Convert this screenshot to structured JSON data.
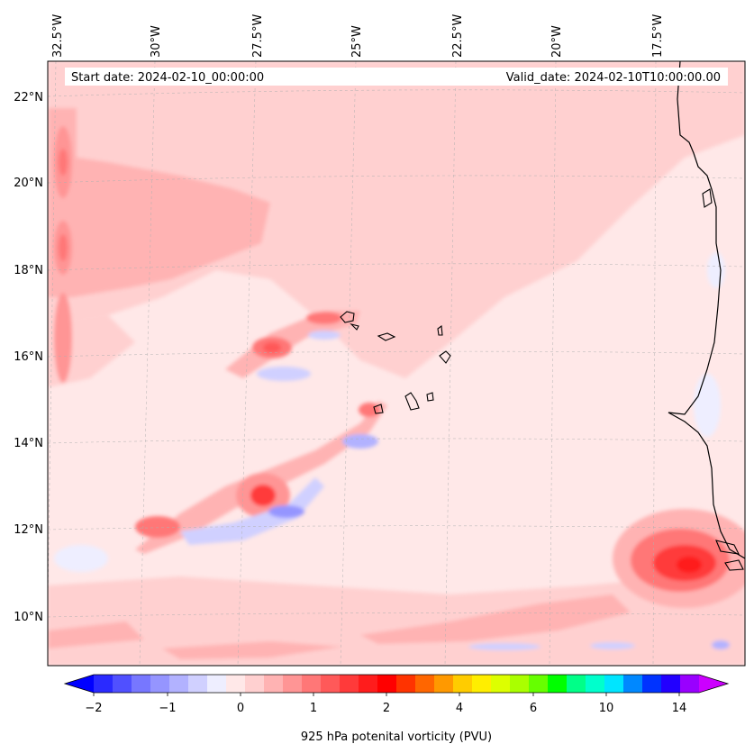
{
  "map": {
    "start_date": "Start date: 2024-02-10_00:00:00",
    "valid_date": "Valid_date: 2024-02-10T10:00:00.00",
    "lon_labels": [
      "32.5°W",
      "30°W",
      "27.5°W",
      "25°W",
      "22.5°W",
      "20°W",
      "17.5°W"
    ],
    "lat_labels": [
      "22°N",
      "20°N",
      "18°N",
      "16°N",
      "14°N",
      "12°N",
      "10°N"
    ]
  },
  "colorbar": {
    "label": "925 hPa potenital vorticity (PVU)",
    "tick_labels": [
      "−2",
      "−1",
      "0",
      "1",
      "2",
      "4",
      "6",
      "10",
      "14"
    ],
    "colors": [
      "#0000ff",
      "#2a2aff",
      "#5050ff",
      "#7777ff",
      "#9595ff",
      "#b2b2ff",
      "#d0d0ff",
      "#eeeeff",
      "#ffe8e8",
      "#ffd0d0",
      "#ffb3b3",
      "#ff9595",
      "#ff7777",
      "#ff5959",
      "#ff3a3a",
      "#ff1c1c",
      "#ff0000",
      "#ff3300",
      "#ff6600",
      "#ff9900",
      "#ffcc00",
      "#ffee00",
      "#ddff00",
      "#aaff00",
      "#66ff00",
      "#00ff00",
      "#00ff88",
      "#00ffcc",
      "#00e5ff",
      "#0088ff",
      "#0033ff",
      "#2200ff",
      "#9900ff",
      "#cc00ff"
    ]
  }
}
